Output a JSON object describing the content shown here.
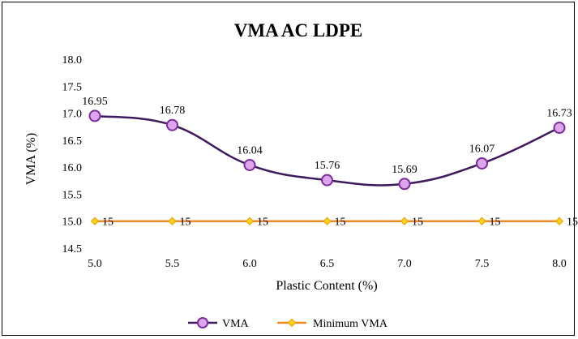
{
  "chart_data": {
    "type": "line",
    "title": "VMA AC LDPE",
    "xlabel": "Plastic Content (%)",
    "ylabel": "VMA (%)",
    "x": [
      5.0,
      5.5,
      6.0,
      6.5,
      7.0,
      7.5,
      8.0
    ],
    "x_tick_labels": [
      "5.0",
      "5.5",
      "6.0",
      "6.5",
      "7.0",
      "7.5",
      "8.0"
    ],
    "ylim": [
      14.5,
      18.0
    ],
    "y_tick_labels": [
      "18.0",
      "17.5",
      "17.0",
      "16.5",
      "16.0",
      "15.5",
      "15.0",
      "14.5"
    ],
    "grid": false,
    "legend_position": "bottom",
    "series": [
      {
        "name": "VMA",
        "values": [
          16.95,
          16.78,
          16.04,
          15.76,
          15.69,
          16.07,
          16.73
        ],
        "labels": [
          "16.95",
          "16.78",
          "16.04",
          "15.76",
          "15.69",
          "16.07",
          "16.73"
        ],
        "line_color": "#3d1a5e",
        "marker": "circle",
        "marker_fill": "#dca6ec",
        "marker_stroke": "#7b2d9b",
        "smooth": true
      },
      {
        "name": "Minimum VMA",
        "values": [
          15,
          15,
          15,
          15,
          15,
          15,
          15
        ],
        "labels": [
          "15",
          "15",
          "15",
          "15",
          "15",
          "15",
          "15"
        ],
        "line_color": "#f08a24",
        "marker": "diamond",
        "marker_fill": "#ffd21a",
        "marker_stroke": "#e8a000",
        "smooth": false
      }
    ]
  }
}
